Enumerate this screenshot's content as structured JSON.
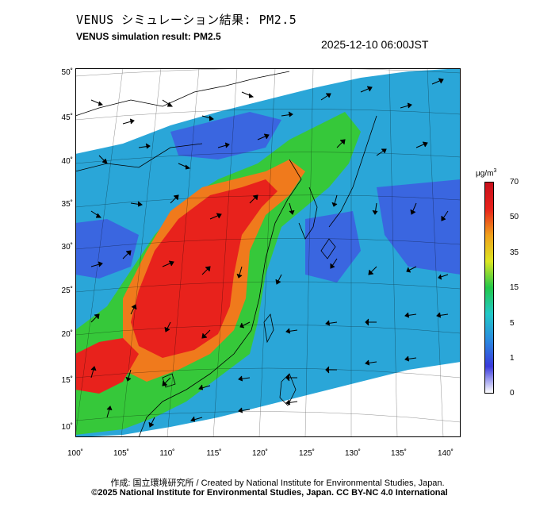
{
  "header": {
    "title_ja": "VENUS シミュレーション結果: PM2.5",
    "title_en": "VENUS simulation result: PM2.5",
    "timestamp": "2025-12-10 06:00JST"
  },
  "map": {
    "lat_labels": [
      "50˚",
      "45˚",
      "40˚",
      "35˚",
      "30˚",
      "25˚",
      "20˚",
      "15˚",
      "10˚"
    ],
    "lon_labels": [
      "100˚",
      "105˚",
      "110˚",
      "115˚",
      "120˚",
      "125˚",
      "130˚",
      "135˚",
      "140˚"
    ],
    "colors": {
      "very_high": "#e8221c",
      "high": "#f07a1c",
      "moderate": "#36c83a",
      "low": "#2aa6d8",
      "very_low": "#3a66e0",
      "background": "#ffffff"
    }
  },
  "colorbar": {
    "unit_prefix": "μg/m",
    "unit_sup": "3",
    "ticks": [
      "70",
      "50",
      "35",
      "15",
      "5",
      "1",
      "0"
    ],
    "stops": [
      "#ffffff",
      "#3a3adc",
      "#2a8ae0",
      "#22c8c8",
      "#22c84a",
      "#dce622",
      "#f0a01c",
      "#e8221c",
      "#c8101c"
    ]
  },
  "footer": {
    "credit": "作成: 国立環境研究所 / Created by National Institute for Environmental Studies, Japan.",
    "license": "©2025 National Institute for Environmental Studies, Japan. CC BY-NC 4.0 International"
  }
}
